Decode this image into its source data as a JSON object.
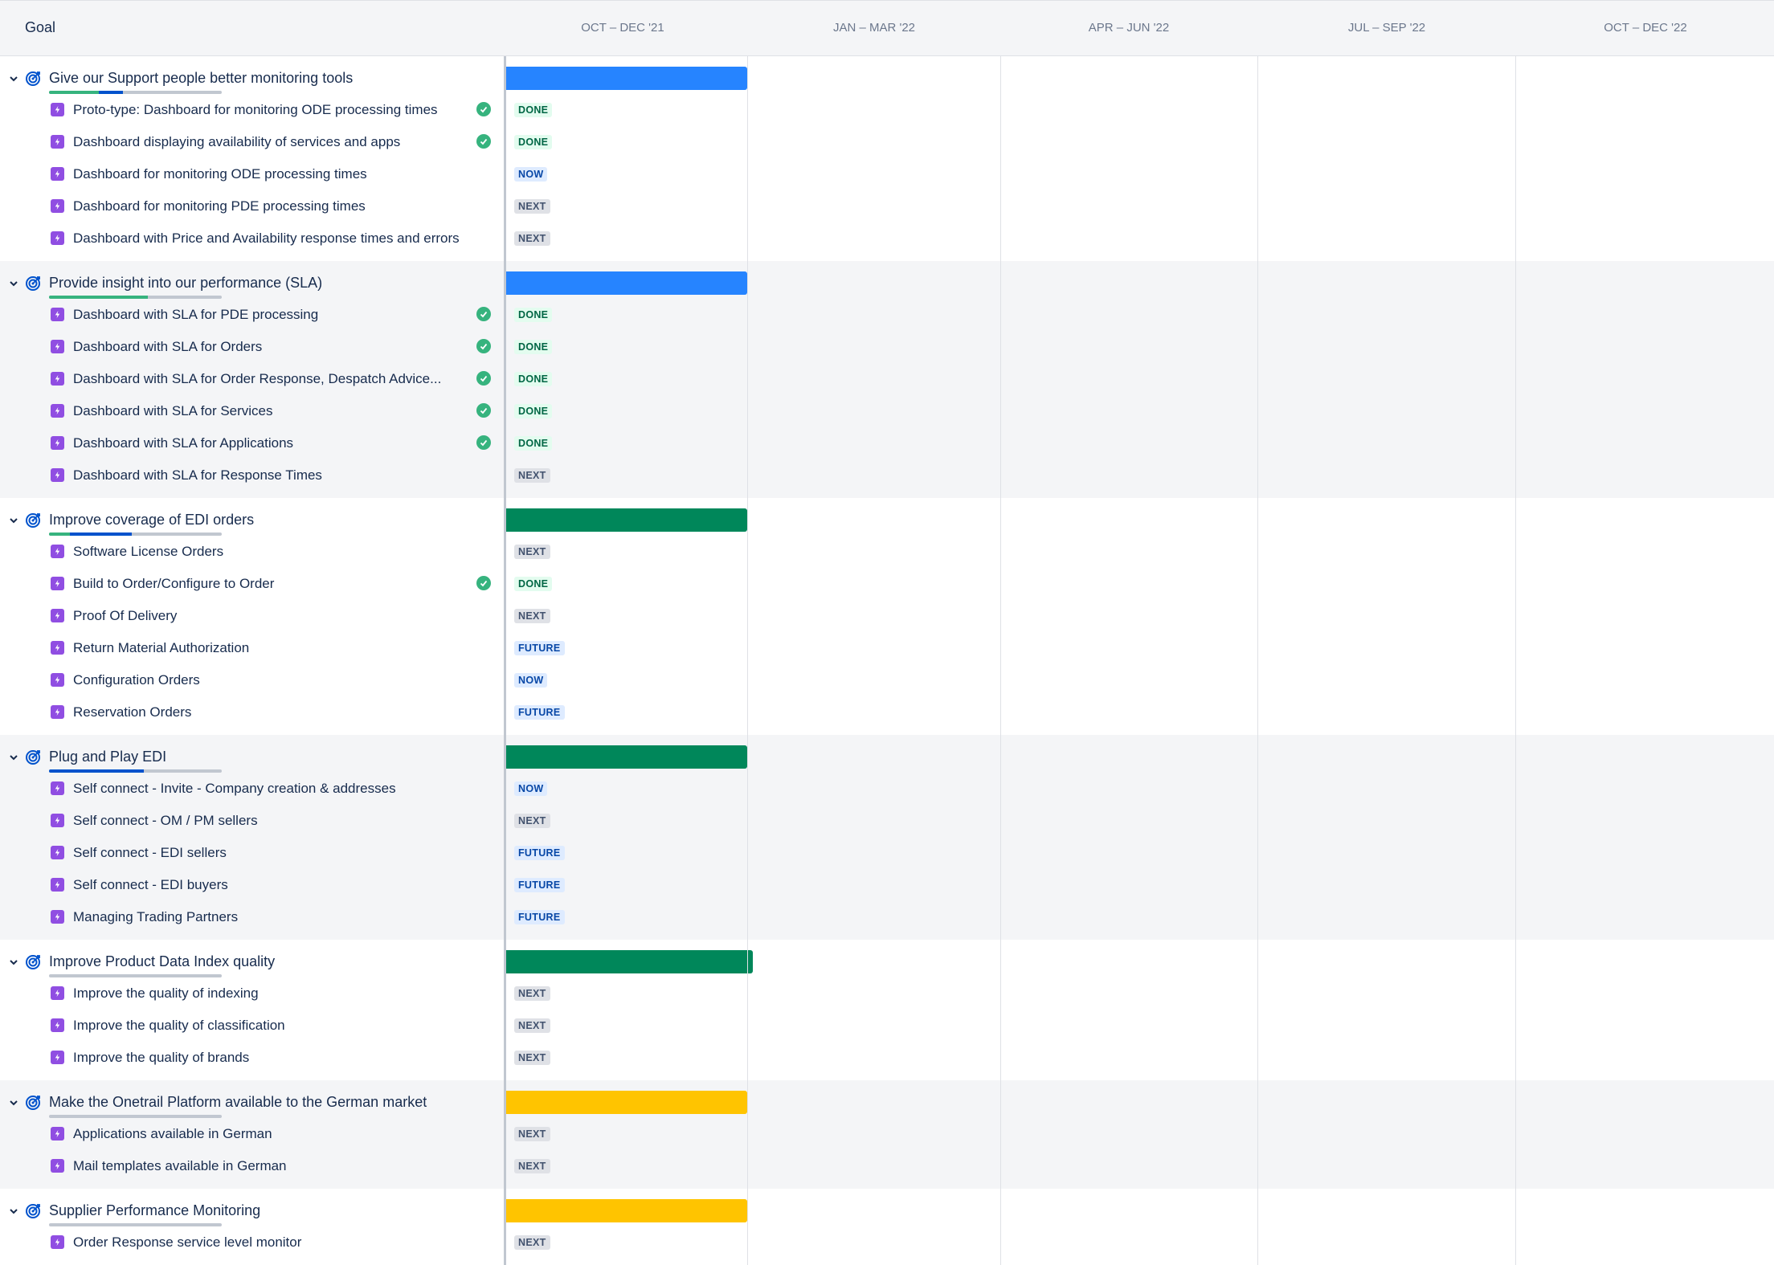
{
  "header": {
    "goal_label": "Goal",
    "periods": [
      "OCT – DEC '21",
      "JAN – MAR '22",
      "APR – JUN '22",
      "JUL – SEP '22",
      "OCT – DEC '22"
    ]
  },
  "colors": {
    "bar_blue": "#2684ff",
    "bar_green": "#00875a",
    "bar_yellow": "#ffc400",
    "alt_row": "#f4f5f7"
  },
  "goals": [
    {
      "title": "Give our Support people better monitoring tools",
      "progress_done": 0.29,
      "progress_in_progress": 0.14,
      "bar_color": "bar_blue",
      "items": [
        {
          "title": "Proto-type: Dashboard for monitoring ODE processing times",
          "status": "DONE",
          "complete": true
        },
        {
          "title": "Dashboard displaying availability of services and apps",
          "status": "DONE",
          "complete": true
        },
        {
          "title": "Dashboard for monitoring ODE processing times",
          "status": "NOW",
          "complete": false
        },
        {
          "title": "Dashboard for monitoring PDE processing times",
          "status": "NEXT",
          "complete": false
        },
        {
          "title": "Dashboard with Price and Availability response times and errors",
          "status": "NEXT",
          "complete": false
        }
      ]
    },
    {
      "title": "Provide insight into our performance (SLA)",
      "progress_done": 0.57,
      "progress_in_progress": 0,
      "bar_color": "bar_blue",
      "items": [
        {
          "title": "Dashboard with SLA for PDE processing",
          "status": "DONE",
          "complete": true
        },
        {
          "title": "Dashboard with SLA for Orders",
          "status": "DONE",
          "complete": true
        },
        {
          "title": "Dashboard with SLA for Order Response, Despatch Advice...",
          "status": "DONE",
          "complete": true
        },
        {
          "title": "Dashboard with SLA for Services",
          "status": "DONE",
          "complete": true
        },
        {
          "title": "Dashboard with SLA for Applications",
          "status": "DONE",
          "complete": true
        },
        {
          "title": "Dashboard with SLA for Response Times",
          "status": "NEXT",
          "complete": false
        }
      ]
    },
    {
      "title": "Improve coverage of EDI orders",
      "progress_done": 0.12,
      "progress_in_progress": 0.36,
      "bar_color": "bar_green",
      "items": [
        {
          "title": "Software License Orders",
          "status": "NEXT",
          "complete": false
        },
        {
          "title": "Build to Order/Configure to Order",
          "status": "DONE",
          "complete": true
        },
        {
          "title": "Proof Of Delivery",
          "status": "NEXT",
          "complete": false
        },
        {
          "title": "Return Material Authorization",
          "status": "FUTURE",
          "complete": false
        },
        {
          "title": "Configuration Orders",
          "status": "NOW",
          "complete": false
        },
        {
          "title": "Reservation Orders",
          "status": "FUTURE",
          "complete": false
        }
      ]
    },
    {
      "title": "Plug and Play EDI",
      "progress_done": 0,
      "progress_in_progress": 0.55,
      "bar_color": "bar_green",
      "items": [
        {
          "title": "Self connect - Invite - Company creation & addresses",
          "status": "NOW",
          "complete": false
        },
        {
          "title": "Self connect - OM / PM sellers",
          "status": "NEXT",
          "complete": false
        },
        {
          "title": "Self connect - EDI sellers",
          "status": "FUTURE",
          "complete": false
        },
        {
          "title": "Self connect - EDI buyers",
          "status": "FUTURE",
          "complete": false
        },
        {
          "title": "Managing Trading Partners",
          "status": "FUTURE",
          "complete": false
        }
      ]
    },
    {
      "title": "Improve Product Data Index quality",
      "progress_done": 0,
      "progress_in_progress": 0,
      "bar_color": "bar_green",
      "bar_extends": true,
      "items": [
        {
          "title": "Improve the quality of indexing",
          "status": "NEXT",
          "complete": false
        },
        {
          "title": "Improve the quality of classification",
          "status": "NEXT",
          "complete": false
        },
        {
          "title": "Improve the quality of brands",
          "status": "NEXT",
          "complete": false
        }
      ]
    },
    {
      "title": "Make the Onetrail Platform available to the German market",
      "progress_done": 0,
      "progress_in_progress": 0,
      "bar_color": "bar_yellow",
      "items": [
        {
          "title": "Applications available in German",
          "status": "NEXT",
          "complete": false
        },
        {
          "title": "Mail templates available in German",
          "status": "NEXT",
          "complete": false
        }
      ]
    },
    {
      "title": "Supplier Performance Monitoring",
      "progress_done": 0,
      "progress_in_progress": 0,
      "bar_color": "bar_yellow",
      "items": [
        {
          "title": "Order Response service level monitor",
          "status": "NEXT",
          "complete": false
        }
      ]
    }
  ]
}
